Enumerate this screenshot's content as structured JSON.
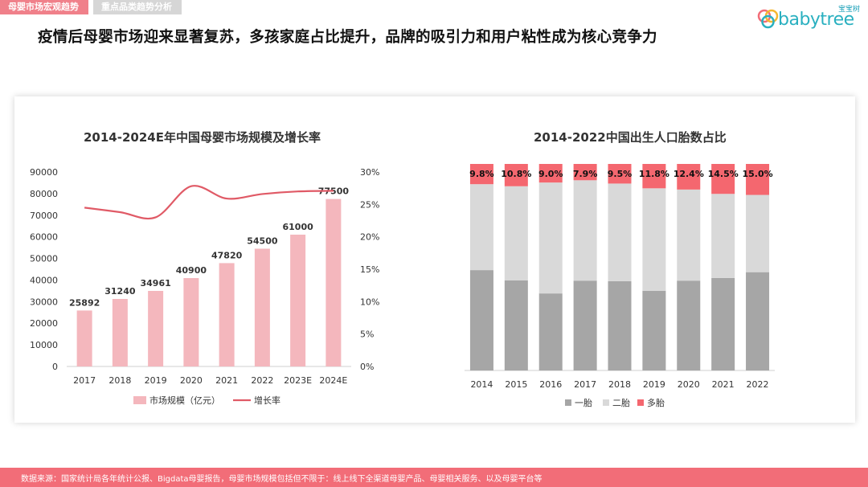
{
  "tabs": {
    "active": "母婴市场宏观趋势",
    "inactive": "重点品类趋势分析"
  },
  "logo": {
    "cn": "宝宝树",
    "en": "babytree"
  },
  "headline": "疫情后母婴市场迎来显著复苏，多孩家庭占比提升，品牌的吸引力和用户粘性成为核心竞争力",
  "footer": "数据来源：国家统计局各年统计公报、Bigdata母婴报告，母婴市场规模包括但不限于：线上线下全渠道母婴产品、母婴相关服务、以及母婴平台等",
  "colors": {
    "accent": "#f26d78",
    "bar": "#f4b7bd",
    "line": "#e05a66",
    "first": "#a6a6a6",
    "second": "#d9d9d9",
    "multi": "#f4676f"
  },
  "chart_data": [
    {
      "type": "bar",
      "title": "2014-2024E年中国母婴市场规模及增长率",
      "categories": [
        "2017",
        "2018",
        "2019",
        "2020",
        "2021",
        "2022",
        "2023E",
        "2024E"
      ],
      "series": [
        {
          "name": "市场规模（亿元）",
          "type": "bar",
          "values": [
            25892,
            31240,
            34961,
            40900,
            47820,
            54500,
            61000,
            77500
          ],
          "labels": [
            "25892",
            "31240",
            "34961",
            "40900",
            "47820",
            "54500",
            "61000",
            "77500"
          ]
        },
        {
          "name": "增长率",
          "type": "line",
          "axis": "right",
          "values": [
            24.5,
            23.8,
            23.0,
            27.8,
            25.9,
            26.6,
            27.0,
            27.1
          ]
        }
      ],
      "ylim": [
        0,
        90000
      ],
      "yticks": [
        "0",
        "10000",
        "20000",
        "30000",
        "40000",
        "50000",
        "60000",
        "70000",
        "80000",
        "90000"
      ],
      "y2lim": [
        0,
        30
      ],
      "y2ticks": [
        "0%",
        "5%",
        "10%",
        "15%",
        "20%",
        "25%",
        "30%"
      ],
      "legend": [
        "市场规模（亿元）",
        "增长率"
      ]
    },
    {
      "type": "bar",
      "stacked": true,
      "title": "2014-2022中国出生人口胎数占比",
      "categories": [
        "2014",
        "2015",
        "2016",
        "2017",
        "2018",
        "2019",
        "2020",
        "2021",
        "2022"
      ],
      "series": [
        {
          "name": "一胎",
          "values": [
            48.6,
            43.6,
            37.3,
            43.5,
            43.2,
            38.6,
            43.5,
            44.8,
            47.6
          ]
        },
        {
          "name": "二胎",
          "values": [
            41.6,
            45.6,
            53.7,
            48.6,
            47.3,
            49.6,
            44.1,
            40.7,
            37.4
          ]
        },
        {
          "name": "多胎",
          "values": [
            9.8,
            10.8,
            9.0,
            7.9,
            9.5,
            11.8,
            12.4,
            14.5,
            15.0
          ],
          "labels": [
            "9.8%",
            "10.8%",
            "9.0%",
            "7.9%",
            "9.5%",
            "11.8%",
            "12.4%",
            "14.5%",
            "15.0%"
          ]
        }
      ],
      "ylim": [
        0,
        100
      ],
      "legend": [
        "一胎",
        "二胎",
        "多胎"
      ]
    }
  ]
}
